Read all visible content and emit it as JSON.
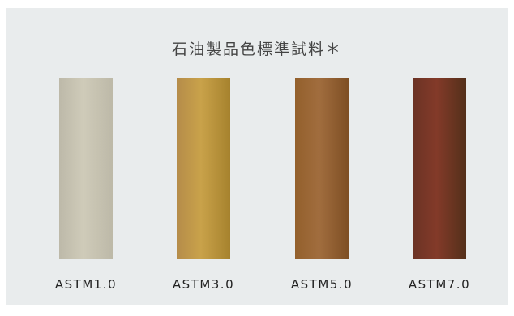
{
  "title": "石油製品色標準試料＊",
  "samples": [
    {
      "label": "ASTM1.0",
      "colors": [
        "#bdb9a9",
        "#cfcbb9",
        "#bdb9a8"
      ]
    },
    {
      "label": "ASTM3.0",
      "colors": [
        "#b58c4a",
        "#c9a24a",
        "#a6822d"
      ]
    },
    {
      "label": "ASTM5.0",
      "colors": [
        "#93602c",
        "#a16d3e",
        "#7e4f24"
      ]
    },
    {
      "label": "ASTM7.0",
      "colors": [
        "#6b3325",
        "#833a29",
        "#53301a"
      ]
    }
  ]
}
